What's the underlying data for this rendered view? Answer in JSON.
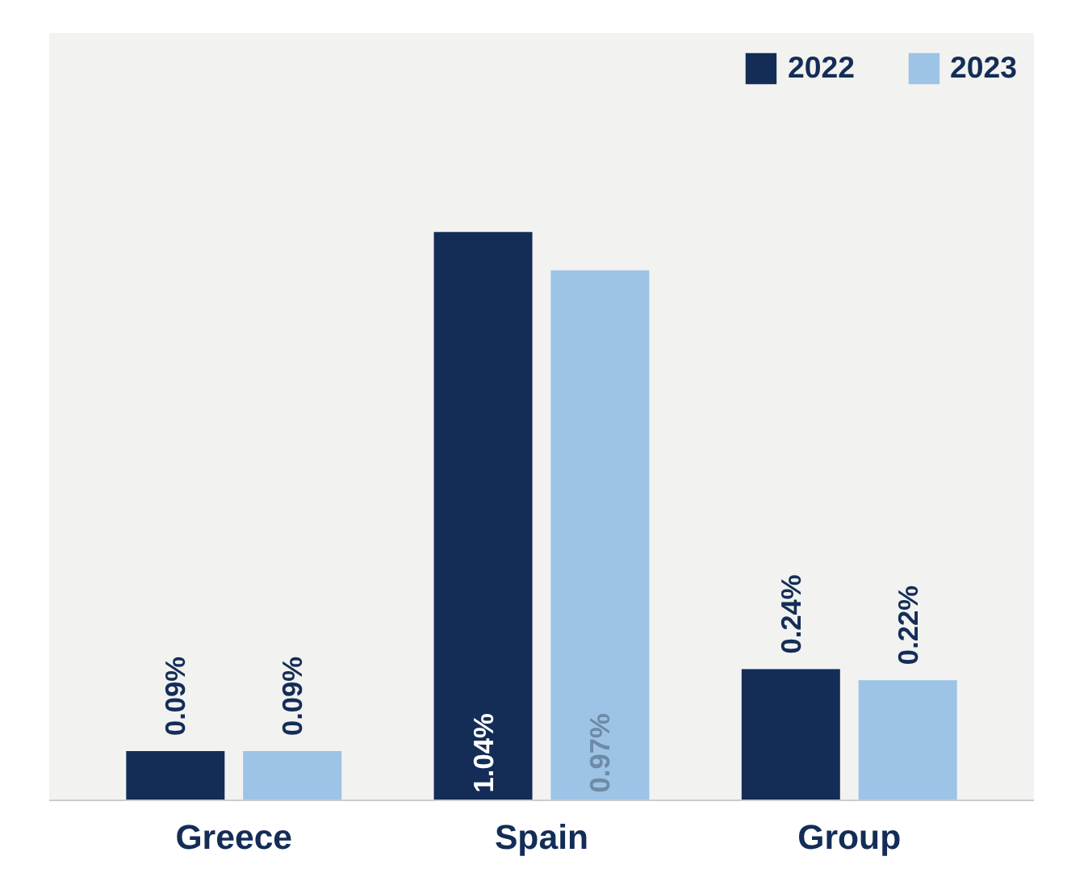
{
  "chart_data": {
    "type": "bar",
    "categories": [
      "Greece",
      "Spain",
      "Group"
    ],
    "series": [
      {
        "name": "2022",
        "color": "#132d57",
        "values": [
          0.09,
          1.04,
          0.24
        ],
        "value_labels": [
          "0.09%",
          "1.04%",
          "0.24%"
        ]
      },
      {
        "name": "2023",
        "color": "#9dc3e6",
        "values": [
          0.09,
          0.97,
          0.22
        ],
        "value_labels": [
          "0.09%",
          "0.97%",
          "0.22%"
        ]
      }
    ],
    "legend": "top right",
    "grid": false
  }
}
